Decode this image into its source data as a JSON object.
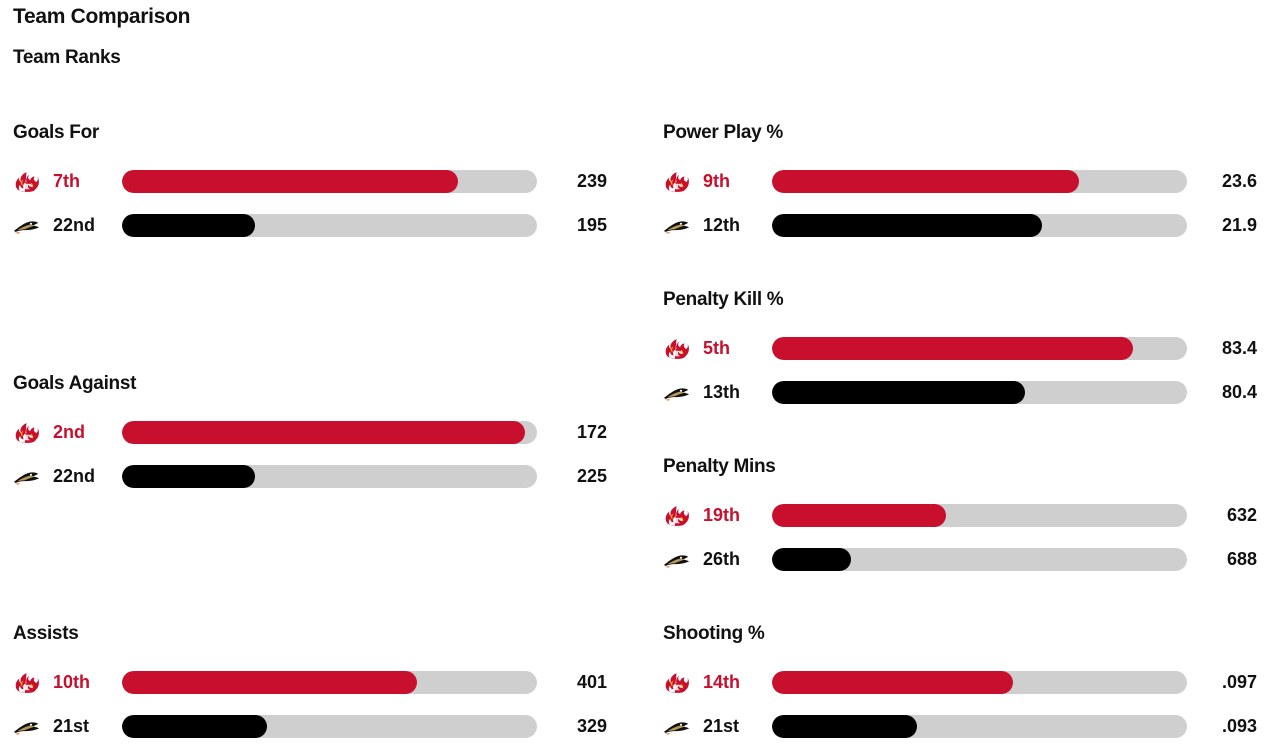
{
  "header": {
    "title": "Team Comparison",
    "subtitle": "Team Ranks"
  },
  "colors": {
    "home": "#c8102e",
    "away": "#000000",
    "track": "#cfcfcf"
  },
  "teams": {
    "home_icon": "flames-logo-icon",
    "away_icon": "ducks-logo-icon"
  },
  "stats": [
    {
      "title": "Goals For",
      "home": {
        "rank": "7th",
        "value": "239",
        "fill": 0.81
      },
      "away": {
        "rank": "22nd",
        "value": "195",
        "fill": 0.32
      }
    },
    {
      "title": "Power Play %",
      "home": {
        "rank": "9th",
        "value": "23.6",
        "fill": 0.74
      },
      "away": {
        "rank": "12th",
        "value": "21.9",
        "fill": 0.65
      }
    },
    {
      "title": "Penalty Kill %",
      "home": {
        "rank": "5th",
        "value": "83.4",
        "fill": 0.87
      },
      "away": {
        "rank": "13th",
        "value": "80.4",
        "fill": 0.61
      }
    },
    {
      "title": "Goals Against",
      "home": {
        "rank": "2nd",
        "value": "172",
        "fill": 0.97
      },
      "away": {
        "rank": "22nd",
        "value": "225",
        "fill": 0.32
      }
    },
    {
      "title": "Penalty Mins",
      "home": {
        "rank": "19th",
        "value": "632",
        "fill": 0.42
      },
      "away": {
        "rank": "26th",
        "value": "688",
        "fill": 0.19
      }
    },
    {
      "title": "Assists",
      "home": {
        "rank": "10th",
        "value": "401",
        "fill": 0.71
      },
      "away": {
        "rank": "21st",
        "value": "329",
        "fill": 0.35
      }
    },
    {
      "title": "Shooting %",
      "home": {
        "rank": "14th",
        "value": ".097",
        "fill": 0.58
      },
      "away": {
        "rank": "21st",
        "value": ".093",
        "fill": 0.35
      }
    }
  ]
}
